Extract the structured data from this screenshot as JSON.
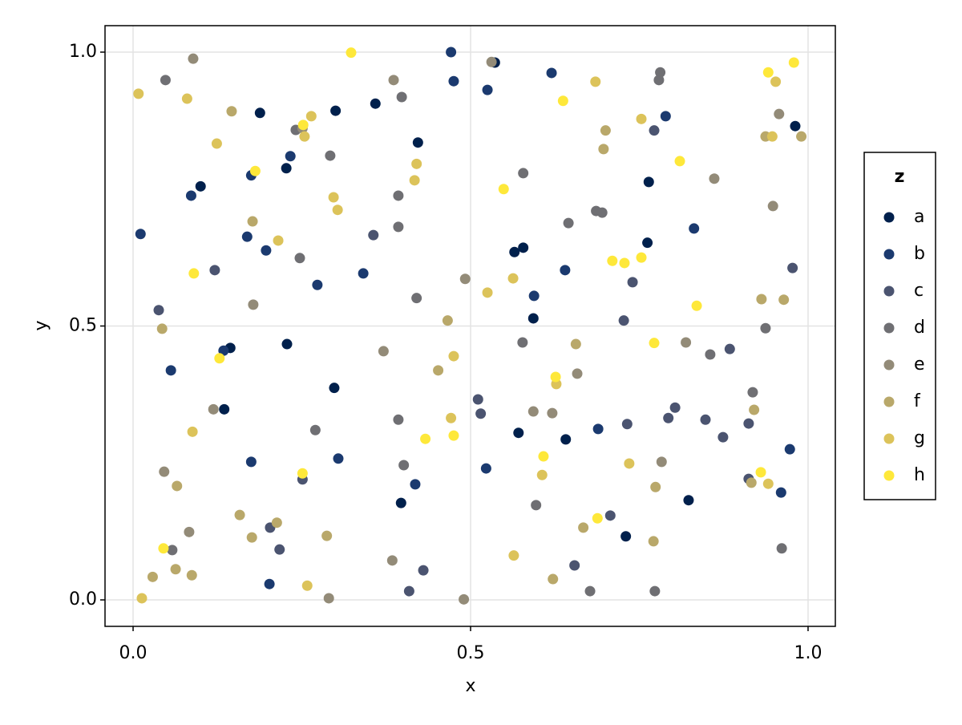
{
  "chart_data": {
    "type": "scatter",
    "x_label": "x",
    "y_label": "y",
    "xlim": [
      -0.0416,
      1.0404
    ],
    "ylim": [
      -0.0483,
      1.0483
    ],
    "xticks": [
      {
        "value": 0,
        "label": "0.0"
      },
      {
        "value": 0.5,
        "label": "0.5"
      },
      {
        "value": 1,
        "label": "1.0"
      }
    ],
    "yticks": [
      {
        "value": 0,
        "label": "0.0"
      },
      {
        "value": 0.5,
        "label": "0.5"
      },
      {
        "value": 1,
        "label": "1.0"
      }
    ],
    "grid": true,
    "legend_title": "z",
    "legend_position": "right",
    "series": [
      {
        "name": "a",
        "color": "#00204c",
        "x": [
          0.188,
          0.1,
          0.227,
          0.3,
          0.359,
          0.422,
          0.536,
          0.565,
          0.578,
          0.593,
          0.764,
          0.762,
          0.981,
          0.144,
          0.228,
          0.135,
          0.298,
          0.397,
          0.571,
          0.641,
          0.73,
          0.823
        ],
        "y": [
          0.889,
          0.755,
          0.788,
          0.893,
          0.906,
          0.835,
          0.981,
          0.635,
          0.643,
          0.514,
          0.763,
          0.652,
          0.865,
          0.46,
          0.467,
          0.348,
          0.387,
          0.177,
          0.305,
          0.293,
          0.116,
          0.182
        ]
      },
      {
        "name": "b",
        "color": "#1b3a6f",
        "x": [
          0.011,
          0.086,
          0.175,
          0.233,
          0.169,
          0.197,
          0.273,
          0.341,
          0.471,
          0.475,
          0.525,
          0.62,
          0.789,
          0.831,
          0.64,
          0.594,
          0.056,
          0.134,
          0.175,
          0.304,
          0.418,
          0.523,
          0.689,
          0.973,
          0.96,
          0.202
        ],
        "y": [
          0.668,
          0.738,
          0.775,
          0.81,
          0.663,
          0.638,
          0.575,
          0.596,
          1.0,
          0.947,
          0.931,
          0.962,
          0.883,
          0.678,
          0.602,
          0.555,
          0.419,
          0.455,
          0.252,
          0.258,
          0.211,
          0.24,
          0.312,
          0.275,
          0.196,
          0.029
        ]
      },
      {
        "name": "c",
        "color": "#4b5470",
        "x": [
          0.038,
          0.121,
          0.356,
          0.511,
          0.515,
          0.727,
          0.772,
          0.74,
          0.793,
          0.732,
          0.848,
          0.874,
          0.884,
          0.912,
          0.912,
          0.977,
          0.251,
          0.217,
          0.203,
          0.43,
          0.654,
          0.707,
          0.409,
          0.803
        ],
        "y": [
          0.529,
          0.602,
          0.666,
          0.366,
          0.34,
          0.51,
          0.857,
          0.58,
          0.332,
          0.321,
          0.329,
          0.297,
          0.458,
          0.322,
          0.221,
          0.606,
          0.22,
          0.092,
          0.132,
          0.054,
          0.063,
          0.154,
          0.016,
          0.351
        ]
      },
      {
        "name": "d",
        "color": "#6f6f73",
        "x": [
          0.048,
          0.241,
          0.292,
          0.398,
          0.393,
          0.393,
          0.247,
          0.42,
          0.578,
          0.645,
          0.686,
          0.695,
          0.781,
          0.779,
          0.855,
          0.918,
          0.937,
          0.577,
          0.393,
          0.401,
          0.058,
          0.27,
          0.597,
          0.677,
          0.773,
          0.961
        ],
        "y": [
          0.949,
          0.858,
          0.811,
          0.918,
          0.738,
          0.681,
          0.624,
          0.551,
          0.779,
          0.688,
          0.71,
          0.707,
          0.963,
          0.949,
          0.448,
          0.379,
          0.496,
          0.47,
          0.329,
          0.246,
          0.091,
          0.31,
          0.173,
          0.016,
          0.016,
          0.094
        ]
      },
      {
        "name": "e",
        "color": "#938b78",
        "x": [
          0.089,
          0.531,
          0.386,
          0.492,
          0.957,
          0.948,
          0.861,
          0.819,
          0.783,
          0.658,
          0.621,
          0.593,
          0.119,
          0.083,
          0.384,
          0.49,
          0.29,
          0.046,
          0.251,
          0.178,
          0.371
        ],
        "y": [
          0.988,
          0.982,
          0.949,
          0.586,
          0.887,
          0.719,
          0.769,
          0.47,
          0.252,
          0.413,
          0.341,
          0.344,
          0.348,
          0.124,
          0.072,
          0.001,
          0.003,
          0.234,
          0.861,
          0.539,
          0.454
        ]
      },
      {
        "name": "f",
        "color": "#b9a86a",
        "x": [
          0.146,
          0.177,
          0.176,
          0.158,
          0.213,
          0.287,
          0.029,
          0.087,
          0.065,
          0.7,
          0.697,
          0.937,
          0.964,
          0.931,
          0.916,
          0.92,
          0.774,
          0.771,
          0.667,
          0.656,
          0.466,
          0.452,
          0.99,
          0.043,
          0.622,
          0.063
        ],
        "y": [
          0.892,
          0.691,
          0.114,
          0.155,
          0.141,
          0.117,
          0.042,
          0.045,
          0.208,
          0.857,
          0.823,
          0.846,
          0.548,
          0.549,
          0.214,
          0.347,
          0.206,
          0.107,
          0.132,
          0.467,
          0.51,
          0.419,
          0.846,
          0.495,
          0.038,
          0.056
        ]
      },
      {
        "name": "g",
        "color": "#dcc35a",
        "x": [
          0.008,
          0.08,
          0.124,
          0.264,
          0.254,
          0.297,
          0.303,
          0.215,
          0.088,
          0.417,
          0.42,
          0.471,
          0.475,
          0.525,
          0.563,
          0.627,
          0.685,
          0.753,
          0.952,
          0.947,
          0.941,
          0.735,
          0.564,
          0.606,
          0.258,
          0.013
        ],
        "y": [
          0.924,
          0.915,
          0.833,
          0.883,
          0.846,
          0.735,
          0.712,
          0.656,
          0.307,
          0.766,
          0.796,
          0.332,
          0.445,
          0.561,
          0.587,
          0.394,
          0.946,
          0.878,
          0.946,
          0.846,
          0.212,
          0.249,
          0.081,
          0.228,
          0.026,
          0.003
        ]
      },
      {
        "name": "h",
        "color": "#fee83a",
        "x": [
          0.323,
          0.252,
          0.181,
          0.09,
          0.128,
          0.251,
          0.045,
          0.433,
          0.475,
          0.549,
          0.637,
          0.81,
          0.941,
          0.979,
          0.71,
          0.728,
          0.753,
          0.772,
          0.835,
          0.626,
          0.608,
          0.688,
          0.93
        ],
        "y": [
          0.999,
          0.867,
          0.783,
          0.596,
          0.441,
          0.231,
          0.094,
          0.294,
          0.3,
          0.75,
          0.911,
          0.801,
          0.963,
          0.981,
          0.619,
          0.615,
          0.625,
          0.469,
          0.537,
          0.407,
          0.262,
          0.149,
          0.233
        ]
      }
    ]
  }
}
